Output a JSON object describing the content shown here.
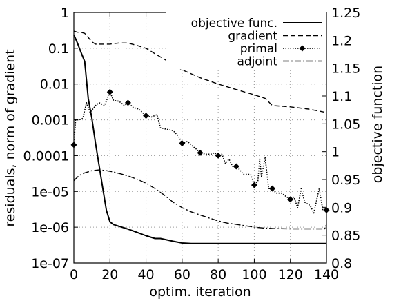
{
  "chart_data": {
    "type": "line",
    "xlabel": "optim. iteration",
    "ylabel_left": "residuals, norm of gradient",
    "ylabel_right": "objective function",
    "xlim": [
      0,
      140
    ],
    "ylim_left": [
      1e-07,
      1
    ],
    "ylim_right": [
      0.8,
      1.25
    ],
    "yscale_left": "log",
    "grid": true,
    "legend_position": "top-right",
    "x_ticks": [
      "0",
      "20",
      "40",
      "60",
      "80",
      "100",
      "120",
      "140"
    ],
    "y_left_ticks": [
      "1",
      "0.1",
      "0.01",
      "0.001",
      "0.0001",
      "1e-05",
      "1e-06",
      "1e-07"
    ],
    "y_right_ticks": [
      "1.25",
      "1.2",
      "1.15",
      "1.1",
      "1.05",
      "1",
      "0.95",
      "0.9",
      "0.85",
      "0.8"
    ],
    "series": [
      {
        "name": "objective func.",
        "axis": "right",
        "style": "solid",
        "x": [
          0,
          2,
          4,
          6,
          8,
          10,
          12,
          14,
          16,
          18,
          20,
          22,
          25,
          30,
          35,
          40,
          45,
          48,
          55,
          60,
          65,
          70,
          80,
          90,
          100,
          110,
          120,
          130,
          140
        ],
        "y": [
          1.21,
          1.195,
          1.178,
          1.162,
          1.095,
          1.06,
          1.015,
          0.975,
          0.935,
          0.895,
          0.874,
          0.869,
          0.866,
          0.861,
          0.855,
          0.849,
          0.844,
          0.844,
          0.839,
          0.836,
          0.835,
          0.835,
          0.835,
          0.835,
          0.835,
          0.835,
          0.835,
          0.835,
          0.835
        ]
      },
      {
        "name": "gradient",
        "axis": "left",
        "style": "dashed",
        "x": [
          0,
          2,
          4,
          6,
          8,
          10,
          12,
          14,
          16,
          20,
          25,
          30,
          35,
          40,
          45,
          50,
          55,
          60,
          70,
          80,
          90,
          100,
          106,
          110,
          120,
          130,
          140
        ],
        "y": [
          0.3,
          0.28,
          0.28,
          0.26,
          0.2,
          0.15,
          0.13,
          0.13,
          0.13,
          0.13,
          0.14,
          0.14,
          0.12,
          0.1,
          0.07,
          0.05,
          0.035,
          0.025,
          0.015,
          0.01,
          0.007,
          0.005,
          0.004,
          0.0025,
          0.0023,
          0.002,
          0.0016
        ]
      },
      {
        "name": "primal",
        "axis": "left",
        "style": "dotted-diamond",
        "x": [
          0,
          1,
          3,
          5,
          7,
          9,
          12,
          14,
          17,
          20,
          22,
          25,
          28,
          30,
          33,
          36,
          40,
          43,
          46,
          48,
          51,
          55,
          58,
          60,
          63,
          66,
          68,
          70,
          73,
          76,
          78,
          80,
          82,
          84,
          86,
          88,
          90,
          92,
          94,
          96,
          98,
          100,
          102,
          103,
          104,
          106,
          108,
          110,
          112,
          115,
          118,
          120,
          122,
          124,
          126,
          128,
          131,
          133,
          136,
          138,
          140
        ],
        "y": [
          0.0002,
          0.001,
          0.001,
          0.0011,
          0.003,
          0.0016,
          0.0025,
          0.003,
          0.0025,
          0.006,
          0.0035,
          0.0033,
          0.0025,
          0.003,
          0.0022,
          0.002,
          0.0013,
          0.0012,
          0.0014,
          0.0006,
          0.00055,
          0.0005,
          0.00035,
          0.00022,
          0.00025,
          0.00018,
          0.00015,
          0.00012,
          0.00011,
          0.00011,
          0.00012,
          0.0001,
          0.00011,
          6e-05,
          8e-05,
          5e-05,
          5e-05,
          4e-05,
          3e-05,
          3e-05,
          3e-05,
          1.5e-05,
          2e-05,
          8e-05,
          2.5e-05,
          9e-05,
          1.2e-05,
          1.2e-05,
          9e-06,
          9e-06,
          7e-06,
          6e-06,
          7e-06,
          3.5e-06,
          1.2e-05,
          5e-06,
          4e-06,
          2.5e-06,
          1.2e-05,
          3e-06,
          3e-06
        ]
      },
      {
        "name": "adjoint",
        "axis": "left",
        "style": "dash-dot",
        "x": [
          0,
          3,
          6,
          10,
          14,
          18,
          22,
          26,
          30,
          35,
          40,
          45,
          50,
          55,
          60,
          65,
          70,
          75,
          80,
          85,
          90,
          95,
          100,
          105,
          110,
          120,
          130,
          139,
          140
        ],
        "y": [
          2e-05,
          2.8e-05,
          3.3e-05,
          3.8e-05,
          4e-05,
          3.8e-05,
          3.5e-05,
          3.1e-05,
          2.7e-05,
          2.2e-05,
          1.7e-05,
          1.2e-05,
          8e-06,
          5e-06,
          3.5e-06,
          2.7e-06,
          2.2e-06,
          1.8e-06,
          1.5e-06,
          1.3e-06,
          1.2e-06,
          1.1e-06,
          1e-06,
          9.5e-07,
          9.2e-07,
          9e-07,
          9e-07,
          9e-07,
          1.2e-06
        ]
      }
    ]
  }
}
